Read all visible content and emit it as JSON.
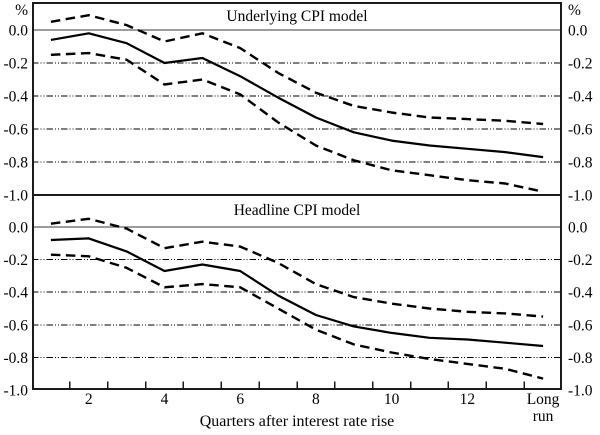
{
  "figure": {
    "percent_left": "%",
    "percent_right": "%",
    "xlabel": "Quarters after interest rate rise",
    "y_ticks": [
      {
        "v": 0,
        "label": "0.0"
      },
      {
        "v": -0.2,
        "label": "-0.2"
      },
      {
        "v": -0.4,
        "label": "-0.4"
      },
      {
        "v": -0.6,
        "label": "-0.6"
      },
      {
        "v": -0.8,
        "label": "-0.8"
      },
      {
        "v": -1.0,
        "label": "-1.0"
      }
    ],
    "x_tick_labels": [
      {
        "pos": 2,
        "lines": [
          "2"
        ]
      },
      {
        "pos": 4,
        "lines": [
          "4"
        ]
      },
      {
        "pos": 6,
        "lines": [
          "6"
        ]
      },
      {
        "pos": 8,
        "lines": [
          "8"
        ]
      },
      {
        "pos": 10,
        "lines": [
          "10"
        ]
      },
      {
        "pos": 12,
        "lines": [
          "12"
        ]
      },
      {
        "pos": 14,
        "lines": [
          "Long",
          "run"
        ]
      }
    ],
    "colors": {
      "line": "#000000",
      "grid": "#000000",
      "zero_line": "#3a3a3a",
      "border": "#1a1a1a",
      "background": "#ffffff"
    }
  },
  "chart_data": [
    {
      "type": "line",
      "title": "Underlying CPI model",
      "ylabel": "%",
      "ylim": [
        -1.0,
        0.0
      ],
      "grid": "dash-dot horizontal at -0.2 to -0.8",
      "x": [
        1,
        2,
        3,
        4,
        5,
        6,
        7,
        8,
        9,
        10,
        11,
        12,
        13,
        "Long run"
      ],
      "series": [
        {
          "name": "central estimate",
          "style": "solid",
          "values": [
            -0.06,
            -0.02,
            -0.08,
            -0.2,
            -0.17,
            -0.28,
            -0.41,
            -0.53,
            -0.62,
            -0.67,
            -0.7,
            -0.72,
            -0.74,
            -0.77
          ]
        },
        {
          "name": "upper confidence band",
          "style": "dashed",
          "values": [
            0.05,
            0.09,
            0.03,
            -0.07,
            -0.02,
            -0.11,
            -0.26,
            -0.38,
            -0.46,
            -0.5,
            -0.53,
            -0.54,
            -0.55,
            -0.57
          ]
        },
        {
          "name": "lower confidence band",
          "style": "dashed",
          "values": [
            -0.15,
            -0.14,
            -0.18,
            -0.33,
            -0.3,
            -0.39,
            -0.56,
            -0.7,
            -0.79,
            -0.85,
            -0.88,
            -0.91,
            -0.93,
            -0.98
          ]
        }
      ]
    },
    {
      "type": "line",
      "title": "Headline CPI model",
      "ylabel": "%",
      "ylim": [
        -1.0,
        0.0
      ],
      "grid": "dash-dot horizontal at -0.2 to -0.8",
      "x": [
        1,
        2,
        3,
        4,
        5,
        6,
        7,
        8,
        9,
        10,
        11,
        12,
        13,
        "Long run"
      ],
      "series": [
        {
          "name": "central estimate",
          "style": "solid",
          "values": [
            -0.08,
            -0.07,
            -0.15,
            -0.27,
            -0.23,
            -0.27,
            -0.42,
            -0.54,
            -0.61,
            -0.65,
            -0.68,
            -0.69,
            -0.71,
            -0.73
          ]
        },
        {
          "name": "upper confidence band",
          "style": "dashed",
          "values": [
            0.02,
            0.05,
            -0.01,
            -0.13,
            -0.09,
            -0.12,
            -0.22,
            -0.35,
            -0.43,
            -0.47,
            -0.5,
            -0.52,
            -0.53,
            -0.55
          ]
        },
        {
          "name": "lower confidence band",
          "style": "dashed",
          "values": [
            -0.17,
            -0.18,
            -0.25,
            -0.37,
            -0.35,
            -0.37,
            -0.5,
            -0.63,
            -0.72,
            -0.77,
            -0.81,
            -0.84,
            -0.87,
            -0.93
          ]
        }
      ]
    }
  ]
}
